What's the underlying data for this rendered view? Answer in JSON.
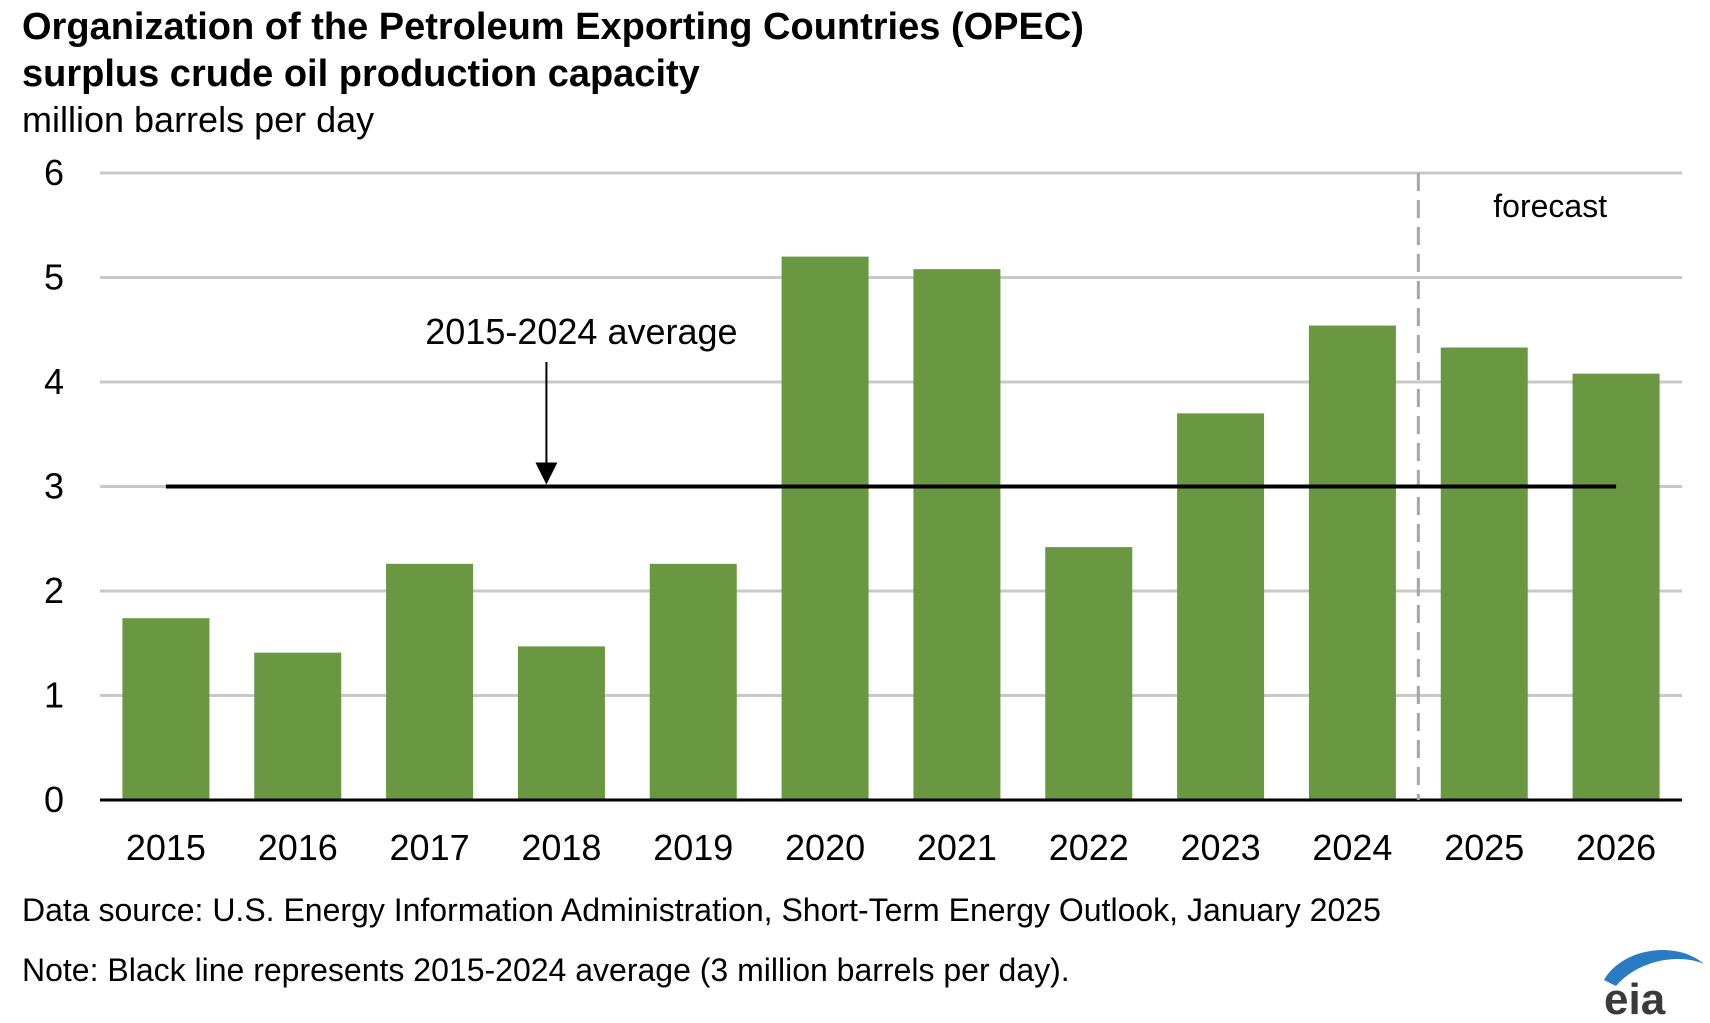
{
  "colors": {
    "bar": "#6a9842",
    "gridline": "#c8c8c8",
    "axis": "#000000",
    "average_line": "#000000",
    "forecast_divider": "#a6a6a6",
    "logo_blue": "#2a7cc2",
    "logo_text": "#3a3a3a"
  },
  "chart_data": {
    "type": "bar",
    "title": "Organization of the Petroleum Exporting Countries (OPEC) surplus crude oil production capacity",
    "title_lines": [
      "Organization of the Petroleum Exporting Countries (OPEC)",
      "surplus crude oil production capacity"
    ],
    "ylabel": "million barrels per day",
    "xlabel": "",
    "categories": [
      "2015",
      "2016",
      "2017",
      "2018",
      "2019",
      "2020",
      "2021",
      "2022",
      "2023",
      "2024",
      "2025",
      "2026"
    ],
    "values": [
      1.74,
      1.41,
      2.26,
      1.47,
      2.26,
      5.2,
      5.08,
      2.42,
      3.7,
      4.54,
      4.33,
      4.08
    ],
    "ylim": [
      0,
      6
    ],
    "yticks": [
      "0",
      "1",
      "2",
      "3",
      "4",
      "5",
      "6"
    ],
    "grid": true,
    "legend": "none",
    "reference_line": {
      "value": 3,
      "from": "2015",
      "to": "2026",
      "label": "2015-2024 average",
      "label_category": "2018"
    },
    "forecast": {
      "label": "forecast",
      "starts_after": "2024",
      "categories": [
        "2025",
        "2026"
      ]
    }
  },
  "footer": {
    "source": "Data source: U.S. Energy Information Administration, Short-Term Energy Outlook, January 2025",
    "note": "Note: Black line represents 2015-2024 average (3 million barrels per day)."
  },
  "logo": {
    "text": "eia",
    "icon": "eia-logo"
  }
}
